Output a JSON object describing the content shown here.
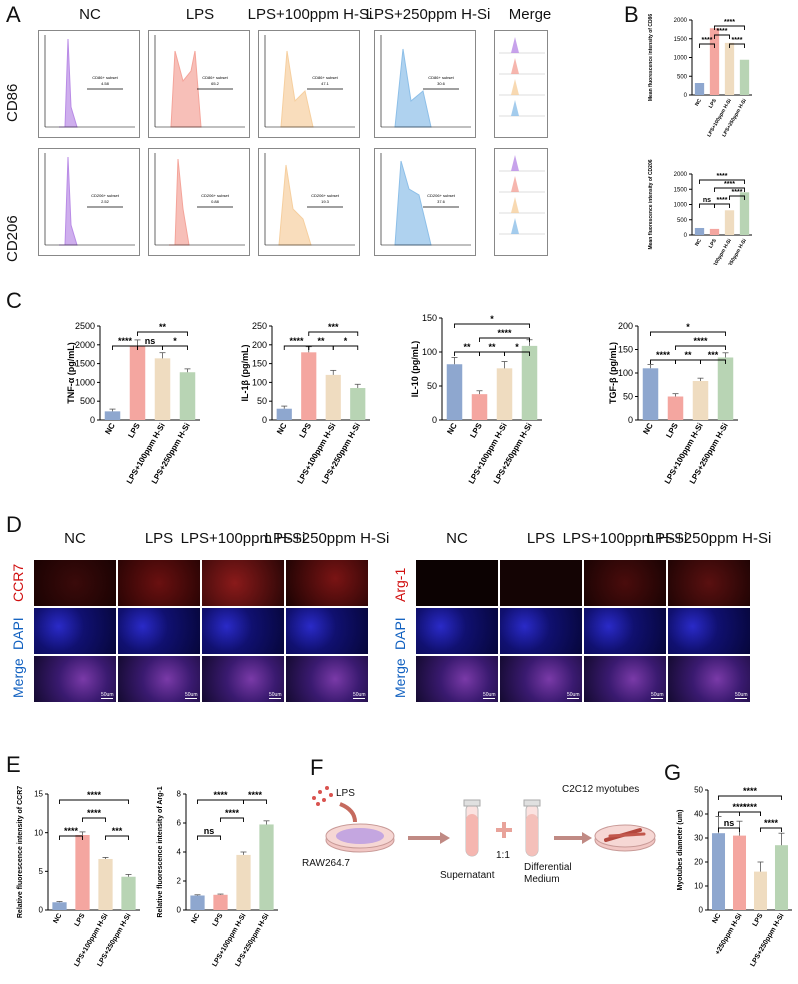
{
  "panels": {
    "A": "A",
    "B": "B",
    "C": "C",
    "D": "D",
    "E": "E",
    "F": "F",
    "G": "G"
  },
  "flow": {
    "columns": [
      "NC",
      "LPS",
      "LPS+100ppm H-Si",
      "LPS+250ppm H-Si",
      "Merge"
    ],
    "rows": [
      "CD86",
      "CD206"
    ],
    "cd86_gates": [
      {
        "label": "CD86+ subset",
        "value": "4.58"
      },
      {
        "label": "CD86+ subset",
        "value": "65.2"
      },
      {
        "label": "CD86+ subset",
        "value": "47.1"
      },
      {
        "label": "CD86+ subset",
        "value": "30.6"
      }
    ],
    "cd206_gates": [
      {
        "label": "CD206+ subset",
        "value": "2.52"
      },
      {
        "label": "CD206+ subset",
        "value": "0.88"
      },
      {
        "label": "CD206+ subset",
        "value": "19.3"
      },
      {
        "label": "CD206+ subset",
        "value": "37.6"
      }
    ],
    "colors": [
      "#b98be6",
      "#f4a49a",
      "#f6cf9f",
      "#8dbfe8"
    ]
  },
  "colors": {
    "nc": "#8ea7cf",
    "lps": "#f4a6a0",
    "h100": "#efdcc0",
    "h250": "#b8d4b4",
    "panelD_red": "#d01010",
    "panelD_blue": "#1060c0"
  },
  "micro": {
    "left_cols": [
      "NC",
      "LPS",
      "LPS+100ppm H-Si",
      "LPS+250ppm H-Si"
    ],
    "right_cols": [
      "NC",
      "LPS",
      "LPS+100ppm H-Si",
      "LPS+250ppm H-Si"
    ],
    "left_rows": [
      "CCR7",
      "DAPI",
      "Merge"
    ],
    "right_rows": [
      "Arg-1",
      "DAPI",
      "Merge"
    ],
    "scale": "50um"
  },
  "schematic": {
    "lps": "LPS",
    "raw": "RAW264.7",
    "supernatant": "Supernatant",
    "ratio": "1:1",
    "medium_line1": "Differential",
    "medium_line2": "Medium",
    "c2c12": "C2C12 myotubes"
  },
  "chart_data": [
    {
      "id": "B1",
      "type": "bar",
      "categories": [
        "NC",
        "LPS",
        "LPS+100ppm H-Si",
        "LPS+250ppm H-Si"
      ],
      "values": [
        320,
        1780,
        1390,
        940
      ],
      "ylabel": "Mean fluorescence intensity of CD86",
      "ylim": [
        0,
        2000
      ],
      "ticks": [
        0,
        500,
        1000,
        1500,
        2000
      ],
      "sig": [
        {
          "a": 0,
          "b": 1,
          "t": "****",
          "lvl": 0
        },
        {
          "a": 1,
          "b": 2,
          "t": "****",
          "lvl": 1
        },
        {
          "a": 2,
          "b": 3,
          "t": "****",
          "lvl": 0
        },
        {
          "a": 1,
          "b": 3,
          "t": "****",
          "lvl": 2
        }
      ]
    },
    {
      "id": "B2",
      "type": "bar",
      "categories": [
        "NC",
        "LPS",
        "LPS+100ppm H-Si",
        "LPS+250ppm H-Si"
      ],
      "values": [
        230,
        200,
        810,
        1400
      ],
      "ylabel": "Mean fluorescence intensity of CD206",
      "ylim": [
        0,
        2000
      ],
      "ticks": [
        0,
        500,
        1000,
        1500,
        2000
      ],
      "sig": [
        {
          "a": 0,
          "b": 1,
          "t": "ns",
          "lvl": 0
        },
        {
          "a": 1,
          "b": 2,
          "t": "****",
          "lvl": 0
        },
        {
          "a": 2,
          "b": 3,
          "t": "****",
          "lvl": 1
        },
        {
          "a": 1,
          "b": 3,
          "t": "****",
          "lvl": 2
        },
        {
          "a": 0,
          "b": 3,
          "t": "****",
          "lvl": 3
        }
      ]
    },
    {
      "id": "C1",
      "type": "bar",
      "categories": [
        "NC",
        "LPS",
        "LPS+100ppm H-Si",
        "LPS+250ppm H-Si"
      ],
      "values": [
        230,
        1960,
        1640,
        1270
      ],
      "errors": [
        60,
        170,
        150,
        90
      ],
      "ylabel": "TNF-α  (pg/mL)",
      "ylim": [
        0,
        2500
      ],
      "ticks": [
        0,
        500,
        1000,
        1500,
        2000,
        2500
      ],
      "sig": [
        {
          "a": 0,
          "b": 1,
          "t": "****",
          "lvl": 0
        },
        {
          "a": 1,
          "b": 2,
          "t": "ns",
          "lvl": 0
        },
        {
          "a": 2,
          "b": 3,
          "t": "*",
          "lvl": 0
        },
        {
          "a": 1,
          "b": 3,
          "t": "**",
          "lvl": 1
        }
      ]
    },
    {
      "id": "C2",
      "type": "bar",
      "categories": [
        "NC",
        "LPS",
        "LPS+100ppm H-Si",
        "LPS+250ppm H-Si"
      ],
      "values": [
        30,
        180,
        120,
        85
      ],
      "errors": [
        7,
        15,
        12,
        10
      ],
      "ylabel": "IL-1β  (pg/mL)",
      "ylim": [
        0,
        250
      ],
      "ticks": [
        0,
        50,
        100,
        150,
        200,
        250
      ],
      "sig": [
        {
          "a": 0,
          "b": 1,
          "t": "****",
          "lvl": 0
        },
        {
          "a": 1,
          "b": 2,
          "t": "**",
          "lvl": 0
        },
        {
          "a": 2,
          "b": 3,
          "t": "*",
          "lvl": 0
        },
        {
          "a": 1,
          "b": 3,
          "t": "***",
          "lvl": 1
        }
      ]
    },
    {
      "id": "C3",
      "type": "bar",
      "categories": [
        "NC",
        "LPS",
        "LPS+100ppm H-Si",
        "LPS+250ppm H-Si"
      ],
      "values": [
        82,
        38,
        76,
        109
      ],
      "errors": [
        10,
        5,
        10,
        9
      ],
      "ylabel": "IL-10  (pg/mL)",
      "ylim": [
        0,
        150
      ],
      "ticks": [
        0,
        50,
        100,
        150
      ],
      "sig": [
        {
          "a": 0,
          "b": 1,
          "t": "**",
          "lvl": 0
        },
        {
          "a": 1,
          "b": 2,
          "t": "**",
          "lvl": 0
        },
        {
          "a": 2,
          "b": 3,
          "t": "*",
          "lvl": 0
        },
        {
          "a": 1,
          "b": 3,
          "t": "****",
          "lvl": 1
        },
        {
          "a": 0,
          "b": 3,
          "t": "*",
          "lvl": 2
        }
      ]
    },
    {
      "id": "C4",
      "type": "bar",
      "categories": [
        "NC",
        "LPS",
        "LPS+100ppm H-Si",
        "LPS+250ppm H-Si"
      ],
      "values": [
        110,
        50,
        83,
        133
      ],
      "errors": [
        8,
        6,
        6,
        10
      ],
      "ylabel": "TGF-β  (pg/mL)",
      "ylim": [
        0,
        200
      ],
      "ticks": [
        0,
        50,
        100,
        150,
        200
      ],
      "sig": [
        {
          "a": 0,
          "b": 1,
          "t": "****",
          "lvl": 0
        },
        {
          "a": 1,
          "b": 2,
          "t": "**",
          "lvl": 0
        },
        {
          "a": 2,
          "b": 3,
          "t": "***",
          "lvl": 0
        },
        {
          "a": 1,
          "b": 3,
          "t": "****",
          "lvl": 1
        },
        {
          "a": 0,
          "b": 3,
          "t": "*",
          "lvl": 2
        }
      ]
    },
    {
      "id": "E1",
      "type": "bar",
      "categories": [
        "NC",
        "LPS",
        "LPS+100ppm H-Si",
        "LPS+250ppm H-Si"
      ],
      "values": [
        1,
        9.7,
        6.6,
        4.3
      ],
      "errors": [
        0.1,
        0.4,
        0.2,
        0.3
      ],
      "ylabel": "Relative fluorescence intensity of CCR7",
      "ylim": [
        0,
        15
      ],
      "ticks": [
        0,
        5,
        10,
        15
      ],
      "sig": [
        {
          "a": 0,
          "b": 1,
          "t": "****",
          "lvl": 0
        },
        {
          "a": 2,
          "b": 3,
          "t": "***",
          "lvl": 0
        },
        {
          "a": 1,
          "b": 2,
          "t": "****",
          "lvl": 1
        },
        {
          "a": 0,
          "b": 3,
          "t": "****",
          "lvl": 2
        }
      ]
    },
    {
      "id": "E2",
      "type": "bar",
      "categories": [
        "NC",
        "LPS",
        "LPS+100ppm H-Si",
        "LPS+250ppm H-Si"
      ],
      "values": [
        1.0,
        1.05,
        3.8,
        5.9
      ],
      "errors": [
        0.05,
        0.05,
        0.2,
        0.25
      ],
      "ylabel": "Relative fluorescence intensity of Arg-1",
      "ylim": [
        0,
        8
      ],
      "ticks": [
        0,
        2,
        4,
        6,
        8
      ],
      "sig": [
        {
          "a": 0,
          "b": 1,
          "t": "ns",
          "lvl": 0
        },
        {
          "a": 1,
          "b": 2,
          "t": "****",
          "lvl": 1
        },
        {
          "a": 2,
          "b": 3,
          "t": "****",
          "lvl": 2
        },
        {
          "a": 0,
          "b": 2,
          "t": "****",
          "lvl": 2
        }
      ]
    },
    {
      "id": "G1",
      "type": "bar",
      "categories": [
        "NC",
        "+250ppm H-Si",
        "LPS",
        "LPS+250ppm H-Si"
      ],
      "values": [
        32,
        31,
        16,
        27
      ],
      "errors": [
        7,
        6,
        4,
        5
      ],
      "ylabel": "Myotubes diameter (um)",
      "ylim": [
        0,
        50
      ],
      "ticks": [
        0,
        10,
        20,
        30,
        40,
        50
      ],
      "sig": [
        {
          "a": 0,
          "b": 1,
          "t": "ns",
          "lvl": 0
        },
        {
          "a": 1,
          "b": 2,
          "t": "****",
          "lvl": 1
        },
        {
          "a": 2,
          "b": 3,
          "t": "****",
          "lvl": 0
        },
        {
          "a": 0,
          "b": 2,
          "t": "****",
          "lvl": 1
        },
        {
          "a": 0,
          "b": 3,
          "t": "****",
          "lvl": 2
        }
      ]
    }
  ]
}
